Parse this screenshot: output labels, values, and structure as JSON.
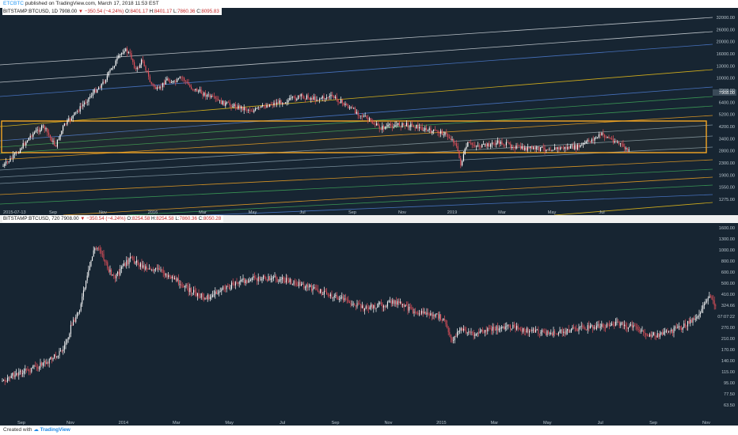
{
  "header": {
    "username": "ETCBTC",
    "published": "published on TradingView.com, March 17, 2018 11:53 EST"
  },
  "pane1": {
    "symbol": "BITSTAMP:BTCUSD, 1D",
    "last": "7908.00",
    "change": "−350.54 (−4.24%)",
    "o_label": "O:",
    "o": "8401.17",
    "h_label": "H:",
    "h": "8401.17",
    "l_label": "L:",
    "l": "7860.36",
    "c_label": "C:",
    "c": "8095.83",
    "y_ticks": [
      "32000.00",
      "26000.00",
      "20000.00",
      "16000.00",
      "13000.00",
      "10000.00",
      "7908.00",
      "6400.00",
      "5200.00",
      "4200.00",
      "3400.00",
      "2800.00",
      "2300.00",
      "1900.00",
      "1550.00",
      "1275.00"
    ],
    "price_tag": "7908.00",
    "x_ticks": [
      "2015-07-13",
      "Sep",
      "Nov",
      "2016",
      "Mar",
      "May",
      "Jul",
      "Sep",
      "Nov",
      "2019",
      "Mar",
      "May",
      "Jul"
    ]
  },
  "pane2": {
    "symbol": "BITSTAMP:BTCUSD, 720",
    "last": "7908.00",
    "change": "−350.54 (−4.24%)",
    "o_label": "O:",
    "o": "8254.58",
    "h_label": "H:",
    "h": "8254.58",
    "l_label": "L:",
    "l": "7860.36",
    "c_label": "C:",
    "c": "8050.28",
    "y_ticks": [
      "1600.00",
      "1300.00",
      "1000.00",
      "800.00",
      "600.00",
      "500.00",
      "410.00",
      "324.66",
      "07:07:22",
      "270.00",
      "210.00",
      "170.00",
      "140.00",
      "115.00",
      "95.00",
      "77.50",
      "63.50"
    ],
    "x_ticks": [
      "Sep",
      "Nov",
      "2014",
      "Mar",
      "May",
      "Jul",
      "Sep",
      "Nov",
      "2015",
      "Mar",
      "May",
      "Jul",
      "Sep",
      "Nov"
    ]
  },
  "footer": {
    "created": "Created with",
    "brand": "TradingView"
  },
  "colors": {
    "bg": "#172532",
    "up": "#ffffff",
    "down": "#e2505a",
    "box": "#f5a623"
  }
}
